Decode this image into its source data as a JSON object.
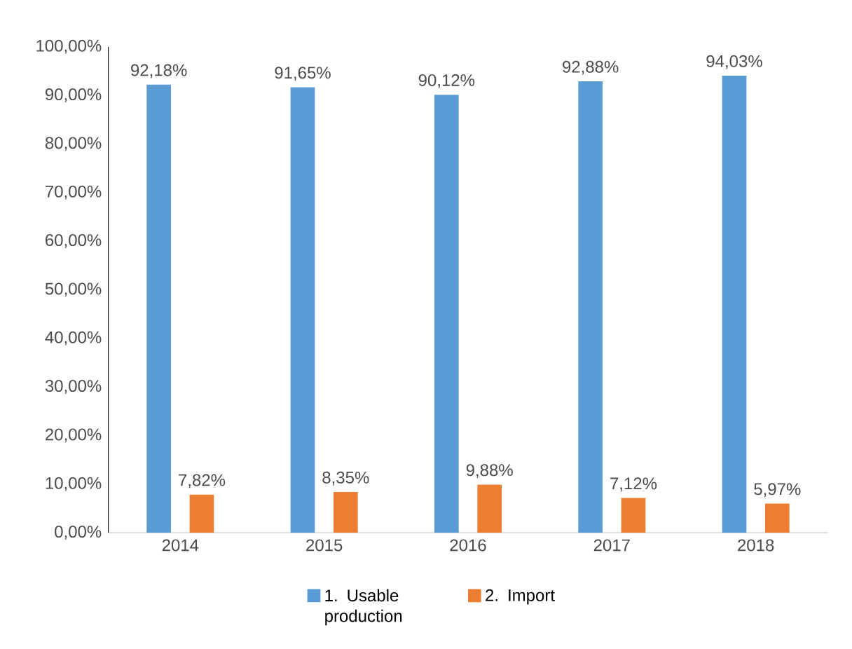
{
  "chart_data": {
    "type": "bar",
    "categories": [
      "2014",
      "2015",
      "2016",
      "2017",
      "2018"
    ],
    "series": [
      {
        "name": "1. Usable production",
        "color": "#5b9bd5",
        "values": [
          92.18,
          91.65,
          90.12,
          92.88,
          94.03
        ],
        "value_labels": [
          "92,18%",
          "91,65%",
          "90,12%",
          "92,88%",
          "94,03%"
        ]
      },
      {
        "name": "2. Import",
        "color": "#ed7d31",
        "values": [
          7.82,
          8.35,
          9.88,
          7.12,
          5.97
        ],
        "value_labels": [
          "7,82%",
          "8,35%",
          "9,88%",
          "7,12%",
          "5,97%"
        ]
      }
    ],
    "ylim": [
      0,
      100
    ],
    "yticks": [
      {
        "value": 0,
        "label": "0,00%"
      },
      {
        "value": 10,
        "label": "10,00%"
      },
      {
        "value": 20,
        "label": "20,00%"
      },
      {
        "value": 30,
        "label": "30,00%"
      },
      {
        "value": 40,
        "label": "40,00%"
      },
      {
        "value": 50,
        "label": "50,00%"
      },
      {
        "value": 60,
        "label": "60,00%"
      },
      {
        "value": 70,
        "label": "70,00%"
      },
      {
        "value": 80,
        "label": "80,00%"
      },
      {
        "value": 90,
        "label": "90,00%"
      },
      {
        "value": 100,
        "label": "100,00%"
      }
    ],
    "legend": "bottom"
  }
}
